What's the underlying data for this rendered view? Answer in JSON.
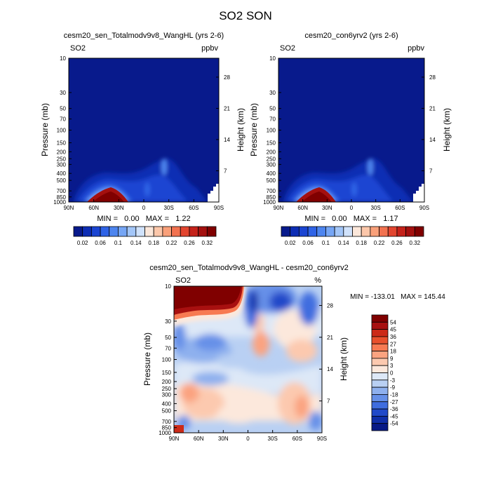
{
  "page_title": "SO2 SON",
  "chart_data": [
    {
      "type": "heatmap",
      "title": "cesm20_sen_Totalmodv9v8_WangHL (yrs 2-6)",
      "corner_left": "SO2",
      "corner_right": "ppbv",
      "ylabel": "Pressure (mb)",
      "ylabel_right": "Height (km)",
      "x_ticks": [
        "90N",
        "60N",
        "30N",
        "0",
        "30S",
        "60S",
        "90S"
      ],
      "y_ticks": [
        "10",
        "30",
        "50",
        "70",
        "100",
        "150",
        "200",
        "250",
        "300",
        "400",
        "500",
        "700",
        "850",
        "1000"
      ],
      "y_ticks_right": [
        "28",
        "21",
        "14",
        "7"
      ],
      "stats": "MIN =   0.00   MAX =   1.22",
      "min": 0.0,
      "max": 1.22,
      "colorbar_labels": [
        "0.02",
        "0.06",
        "0.1",
        "0.14",
        "0.18",
        "0.22",
        "0.26",
        "0.32"
      ]
    },
    {
      "type": "heatmap",
      "title": "cesm20_con6yrv2 (yrs 2-6)",
      "corner_left": "SO2",
      "corner_right": "ppbv",
      "ylabel": "Pressure (mb)",
      "ylabel_right": "Height (km)",
      "x_ticks": [
        "90N",
        "60N",
        "30N",
        "0",
        "30S",
        "60S",
        "90S"
      ],
      "y_ticks": [
        "10",
        "30",
        "50",
        "70",
        "100",
        "150",
        "200",
        "250",
        "300",
        "400",
        "500",
        "700",
        "850",
        "1000"
      ],
      "y_ticks_right": [
        "28",
        "21",
        "14",
        "7"
      ],
      "stats": "MIN =   0.00   MAX =   1.17",
      "min": 0.0,
      "max": 1.17,
      "colorbar_labels": [
        "0.02",
        "0.06",
        "0.1",
        "0.14",
        "0.18",
        "0.22",
        "0.26",
        "0.32"
      ]
    },
    {
      "type": "heatmap",
      "title": "cesm20_sen_Totalmodv9v8_WangHL - cesm20_con6yrv2",
      "corner_left": "SO2",
      "corner_right": "%",
      "ylabel": "Pressure (mb)",
      "ylabel_right": "Height (km)",
      "x_ticks": [
        "90N",
        "60N",
        "30N",
        "0",
        "30S",
        "60S",
        "90S"
      ],
      "y_ticks": [
        "10",
        "30",
        "50",
        "70",
        "100",
        "150",
        "200",
        "250",
        "300",
        "400",
        "500",
        "700",
        "850",
        "1000"
      ],
      "y_ticks_right": [
        "28",
        "21",
        "14",
        "7"
      ],
      "stats": "MIN = -133.01   MAX = 145.44",
      "min": -133.01,
      "max": 145.44,
      "colorbar_labels": [
        "54",
        "45",
        "36",
        "27",
        "18",
        "9",
        "3",
        "0",
        "-3",
        "-9",
        "-18",
        "-27",
        "-36",
        "-45",
        "-54"
      ]
    }
  ],
  "colors": {
    "seq_palette": [
      "#081a8c",
      "#0d2db4",
      "#1b45d2",
      "#2f63e6",
      "#4d85ef",
      "#76a6f5",
      "#a3c6f8",
      "#d0e2fb",
      "#fbe7da",
      "#fcc7aa",
      "#f9a07a",
      "#f27250",
      "#e2452f",
      "#c5221a",
      "#a4100f",
      "#800000"
    ],
    "div_palette": [
      "#800000",
      "#a81010",
      "#cc2a18",
      "#e8502c",
      "#f77a52",
      "#fba380",
      "#fcc9af",
      "#fce8dc",
      "#dde8f7",
      "#b9d0f3",
      "#8eb0ee",
      "#6690e8",
      "#3f6ddf",
      "#2049c9",
      "#0f2ea8",
      "#071986"
    ]
  }
}
